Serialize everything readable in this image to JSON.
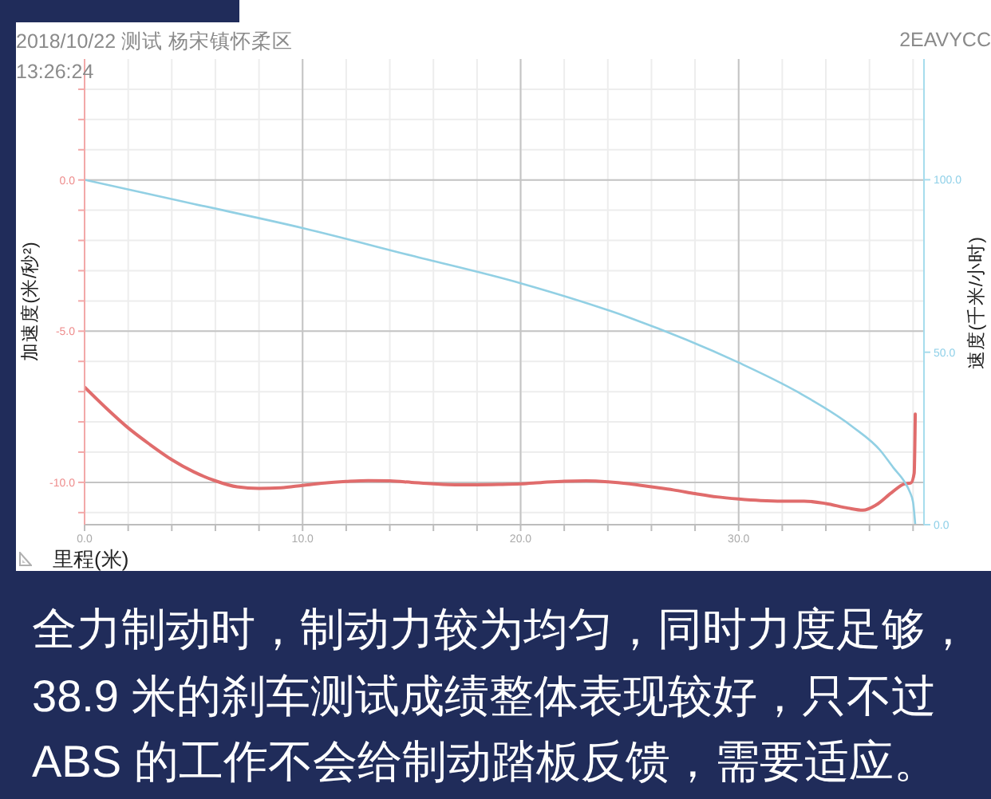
{
  "chart_data": {
    "type": "line",
    "xlabel": "里程(米)",
    "ylabel": "加速度(米/秒²)",
    "y2label": "速度(千米/小时)",
    "annotations": [
      "2018/10/22 测试 杨宋镇怀柔区",
      "13:26:24",
      "2EAVYCC",
      "全力制动时，制动力较为均匀，同时力度足够，38.9 米的刹车测试成绩整体表现较好，只不过 ABS 的工作不会给制动踏板反馈，需要适应。"
    ],
    "xlim": [
      0,
      38.5
    ],
    "xticks": [
      {
        "value": 0,
        "label": "0.0"
      },
      {
        "value": 2,
        "label": null
      },
      {
        "value": 4,
        "label": null
      },
      {
        "value": 6,
        "label": null
      },
      {
        "value": 8,
        "label": null
      },
      {
        "value": 10,
        "label": "10.0"
      },
      {
        "value": 12,
        "label": null
      },
      {
        "value": 14,
        "label": null
      },
      {
        "value": 16,
        "label": null
      },
      {
        "value": 18,
        "label": null
      },
      {
        "value": 20,
        "label": "20.0"
      },
      {
        "value": 22,
        "label": null
      },
      {
        "value": 24,
        "label": null
      },
      {
        "value": 26,
        "label": null
      },
      {
        "value": 28,
        "label": null
      },
      {
        "value": 30,
        "label": "30.0"
      },
      {
        "value": 32,
        "label": null
      },
      {
        "value": 34,
        "label": null
      },
      {
        "value": 36,
        "label": null
      },
      {
        "value": 38,
        "label": null
      }
    ],
    "ylim": [
      -11.4,
      4
    ],
    "yticks": [
      {
        "value": -11,
        "label": null
      },
      {
        "value": -10,
        "label": "-10.0"
      },
      {
        "value": -9,
        "label": null
      },
      {
        "value": -8,
        "label": null
      },
      {
        "value": -7,
        "label": null
      },
      {
        "value": -6,
        "label": null
      },
      {
        "value": -5,
        "label": "-5.0"
      },
      {
        "value": -4,
        "label": null
      },
      {
        "value": -3,
        "label": null
      },
      {
        "value": -2,
        "label": null
      },
      {
        "value": -1,
        "label": null
      },
      {
        "value": 0,
        "label": "0.0"
      },
      {
        "value": 1,
        "label": null
      },
      {
        "value": 2,
        "label": null
      },
      {
        "value": 3,
        "label": null
      }
    ],
    "y2lim": [
      0,
      135
    ],
    "y2ticks": [
      {
        "value": 0,
        "label": "0.0"
      },
      {
        "value": 50,
        "label": "50.0"
      },
      {
        "value": 100,
        "label": "100.0"
      }
    ],
    "grid": true,
    "series": [
      {
        "color": "#e06c6c",
        "x": [
          0,
          1,
          2,
          3,
          4,
          5,
          6,
          7,
          8,
          9,
          10,
          11,
          12,
          13,
          14,
          15,
          16,
          17,
          18,
          19,
          20,
          21,
          22,
          23,
          24,
          25,
          26,
          27,
          28,
          29,
          30,
          31,
          32,
          33,
          34,
          35,
          35.7,
          36.3,
          37,
          37.6,
          37.9,
          38.05,
          38.1
        ],
        "values": [
          -6.85,
          -7.55,
          -8.2,
          -8.75,
          -9.25,
          -9.65,
          -9.95,
          -10.15,
          -10.2,
          -10.18,
          -10.1,
          -10.02,
          -9.97,
          -9.94,
          -9.95,
          -10.0,
          -10.05,
          -10.08,
          -10.08,
          -10.07,
          -10.05,
          -10.0,
          -9.96,
          -9.95,
          -9.98,
          -10.05,
          -10.15,
          -10.25,
          -10.37,
          -10.48,
          -10.55,
          -10.6,
          -10.62,
          -10.62,
          -10.7,
          -10.85,
          -10.92,
          -10.75,
          -10.35,
          -10.05,
          -10.02,
          -9.7,
          -7.74
        ]
      },
      {
        "color": "#92d0e4",
        "axis": "y2",
        "x": [
          0,
          5,
          10,
          15,
          20,
          25,
          30,
          32.7,
          35.2,
          36.5,
          37.1,
          37.6,
          37.85,
          38.0,
          38.1
        ],
        "values": [
          100,
          93,
          86,
          78,
          70,
          60,
          47,
          38.5,
          28.5,
          21.5,
          16.5,
          12.5,
          9.5,
          6.5,
          0
        ]
      }
    ]
  }
}
